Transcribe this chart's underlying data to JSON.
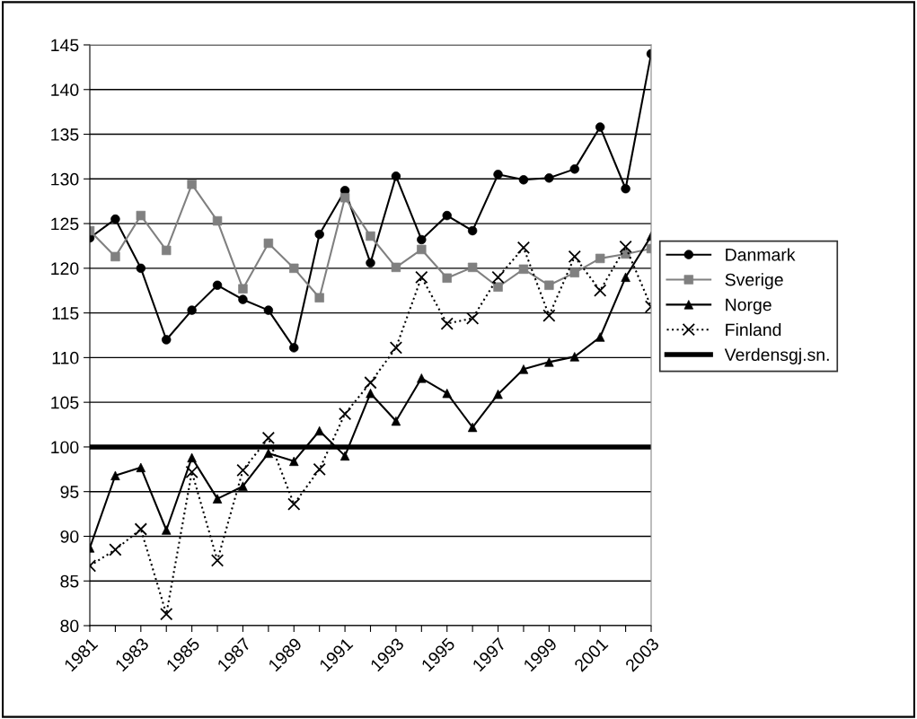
{
  "chart_data": {
    "type": "line",
    "categories": [
      "1981",
      null,
      "1983",
      null,
      "1985",
      null,
      "1987",
      null,
      "1989",
      null,
      "1991",
      null,
      "1993",
      null,
      "1995",
      null,
      "1997",
      null,
      "1999",
      null,
      "2001",
      null,
      "2003"
    ],
    "series": [
      {
        "name": "Danmark",
        "color": "#000000",
        "marker": "circle",
        "line_style": "solid",
        "values": [
          123.4,
          125.5,
          120,
          112,
          115.3,
          118.1,
          116.5,
          115.3,
          111.1,
          123.8,
          128.7,
          120.6,
          130.3,
          123.2,
          125.9,
          124.2,
          130.5,
          129.9,
          130.1,
          131.1,
          135.8,
          128.9,
          144
        ]
      },
      {
        "name": "Sverige",
        "color": "#808080",
        "marker": "square",
        "line_style": "solid",
        "values": [
          124.2,
          121.3,
          125.9,
          122,
          129.4,
          125.3,
          117.7,
          122.8,
          120,
          116.7,
          127.9,
          123.6,
          120.1,
          122.1,
          118.9,
          120.1,
          117.9,
          119.9,
          118.1,
          119.5,
          121.1,
          121.6,
          122.2
        ]
      },
      {
        "name": "Norge",
        "color": "#000000",
        "marker": "triangle",
        "line_style": "solid",
        "values": [
          88.7,
          96.8,
          97.7,
          90.7,
          98.8,
          94.2,
          95.6,
          99.3,
          98.4,
          101.8,
          99,
          106,
          102.9,
          107.7,
          106,
          102.2,
          105.9,
          108.7,
          109.5,
          110.1,
          112.3,
          119,
          123.6
        ]
      },
      {
        "name": "Finland",
        "color": "#000000",
        "marker": "cross",
        "line_style": "dotted",
        "values": [
          86.7,
          88.5,
          90.8,
          81.3,
          97.2,
          87.3,
          97.4,
          101,
          93.6,
          97.5,
          103.7,
          107.2,
          111.1,
          119,
          113.8,
          114.4,
          119,
          122.3,
          114.7,
          121.3,
          117.5,
          122.4,
          115.7
        ]
      }
    ],
    "ref_lines": [
      {
        "axis": "y",
        "value": 100,
        "label": "Verdensgj.sn.",
        "color": "#000000",
        "line_style": "solid"
      }
    ],
    "ylim": [
      80,
      145
    ],
    "yticks": [
      80,
      85,
      90,
      95,
      100,
      105,
      110,
      115,
      120,
      125,
      130,
      135,
      140,
      145
    ],
    "grid": "y",
    "legend": "right"
  }
}
